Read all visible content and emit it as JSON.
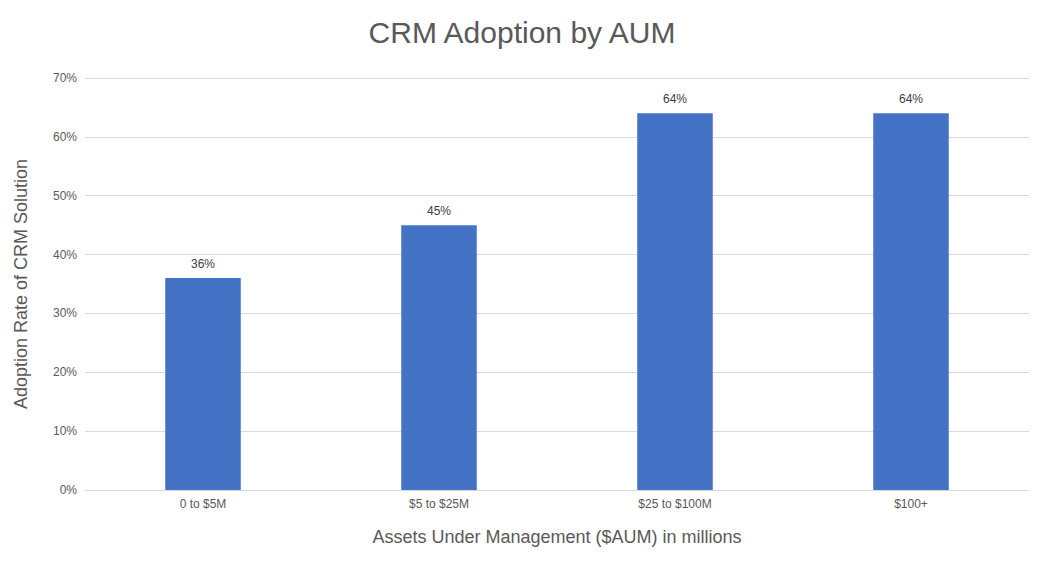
{
  "chart_data": {
    "type": "bar",
    "title": "CRM Adoption by AUM",
    "x_label": "Assets Under Management ($AUM) in millions",
    "y_label": "Adoption Rate of CRM Solution",
    "categories": [
      "0 to $5M",
      "$5 to $25M",
      "$25 to $100M",
      "$100+"
    ],
    "values": [
      36,
      45,
      64,
      64
    ],
    "value_labels": [
      "36%",
      "45%",
      "64%",
      "64%"
    ],
    "color": "#4472c4",
    "ylim": [
      0,
      70
    ],
    "yticks": [
      {
        "value": 0,
        "label": "0%"
      },
      {
        "value": 10,
        "label": "10%"
      },
      {
        "value": 20,
        "label": "20%"
      },
      {
        "value": 30,
        "label": "30%"
      },
      {
        "value": 40,
        "label": "40%"
      },
      {
        "value": 50,
        "label": "50%"
      },
      {
        "value": 60,
        "label": "60%"
      },
      {
        "value": 70,
        "label": "70%"
      }
    ],
    "grid": true,
    "data_labels": true
  }
}
